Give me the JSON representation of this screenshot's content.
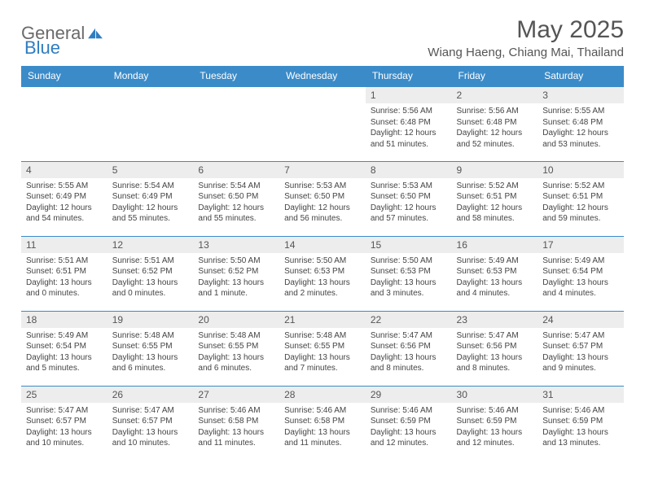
{
  "brand": {
    "general": "General",
    "blue": "Blue"
  },
  "title": "May 2025",
  "location": "Wiang Haeng, Chiang Mai, Thailand",
  "colors": {
    "header_bg": "#3b8bc9",
    "header_text": "#ffffff",
    "daynum_bg": "#ededed",
    "body_text": "#444444",
    "title_text": "#555555",
    "rule": "#3b8bc9"
  },
  "weekdays": [
    "Sunday",
    "Monday",
    "Tuesday",
    "Wednesday",
    "Thursday",
    "Friday",
    "Saturday"
  ],
  "cell_fontsize": 10,
  "daynum_fontsize": 12,
  "weeks": [
    [
      null,
      null,
      null,
      null,
      {
        "n": "1",
        "sr": "Sunrise: 5:56 AM",
        "ss": "Sunset: 6:48 PM",
        "d1": "Daylight: 12 hours",
        "d2": "and 51 minutes."
      },
      {
        "n": "2",
        "sr": "Sunrise: 5:56 AM",
        "ss": "Sunset: 6:48 PM",
        "d1": "Daylight: 12 hours",
        "d2": "and 52 minutes."
      },
      {
        "n": "3",
        "sr": "Sunrise: 5:55 AM",
        "ss": "Sunset: 6:48 PM",
        "d1": "Daylight: 12 hours",
        "d2": "and 53 minutes."
      }
    ],
    [
      {
        "n": "4",
        "sr": "Sunrise: 5:55 AM",
        "ss": "Sunset: 6:49 PM",
        "d1": "Daylight: 12 hours",
        "d2": "and 54 minutes."
      },
      {
        "n": "5",
        "sr": "Sunrise: 5:54 AM",
        "ss": "Sunset: 6:49 PM",
        "d1": "Daylight: 12 hours",
        "d2": "and 55 minutes."
      },
      {
        "n": "6",
        "sr": "Sunrise: 5:54 AM",
        "ss": "Sunset: 6:50 PM",
        "d1": "Daylight: 12 hours",
        "d2": "and 55 minutes."
      },
      {
        "n": "7",
        "sr": "Sunrise: 5:53 AM",
        "ss": "Sunset: 6:50 PM",
        "d1": "Daylight: 12 hours",
        "d2": "and 56 minutes."
      },
      {
        "n": "8",
        "sr": "Sunrise: 5:53 AM",
        "ss": "Sunset: 6:50 PM",
        "d1": "Daylight: 12 hours",
        "d2": "and 57 minutes."
      },
      {
        "n": "9",
        "sr": "Sunrise: 5:52 AM",
        "ss": "Sunset: 6:51 PM",
        "d1": "Daylight: 12 hours",
        "d2": "and 58 minutes."
      },
      {
        "n": "10",
        "sr": "Sunrise: 5:52 AM",
        "ss": "Sunset: 6:51 PM",
        "d1": "Daylight: 12 hours",
        "d2": "and 59 minutes."
      }
    ],
    [
      {
        "n": "11",
        "sr": "Sunrise: 5:51 AM",
        "ss": "Sunset: 6:51 PM",
        "d1": "Daylight: 13 hours",
        "d2": "and 0 minutes."
      },
      {
        "n": "12",
        "sr": "Sunrise: 5:51 AM",
        "ss": "Sunset: 6:52 PM",
        "d1": "Daylight: 13 hours",
        "d2": "and 0 minutes."
      },
      {
        "n": "13",
        "sr": "Sunrise: 5:50 AM",
        "ss": "Sunset: 6:52 PM",
        "d1": "Daylight: 13 hours",
        "d2": "and 1 minute."
      },
      {
        "n": "14",
        "sr": "Sunrise: 5:50 AM",
        "ss": "Sunset: 6:53 PM",
        "d1": "Daylight: 13 hours",
        "d2": "and 2 minutes."
      },
      {
        "n": "15",
        "sr": "Sunrise: 5:50 AM",
        "ss": "Sunset: 6:53 PM",
        "d1": "Daylight: 13 hours",
        "d2": "and 3 minutes."
      },
      {
        "n": "16",
        "sr": "Sunrise: 5:49 AM",
        "ss": "Sunset: 6:53 PM",
        "d1": "Daylight: 13 hours",
        "d2": "and 4 minutes."
      },
      {
        "n": "17",
        "sr": "Sunrise: 5:49 AM",
        "ss": "Sunset: 6:54 PM",
        "d1": "Daylight: 13 hours",
        "d2": "and 4 minutes."
      }
    ],
    [
      {
        "n": "18",
        "sr": "Sunrise: 5:49 AM",
        "ss": "Sunset: 6:54 PM",
        "d1": "Daylight: 13 hours",
        "d2": "and 5 minutes."
      },
      {
        "n": "19",
        "sr": "Sunrise: 5:48 AM",
        "ss": "Sunset: 6:55 PM",
        "d1": "Daylight: 13 hours",
        "d2": "and 6 minutes."
      },
      {
        "n": "20",
        "sr": "Sunrise: 5:48 AM",
        "ss": "Sunset: 6:55 PM",
        "d1": "Daylight: 13 hours",
        "d2": "and 6 minutes."
      },
      {
        "n": "21",
        "sr": "Sunrise: 5:48 AM",
        "ss": "Sunset: 6:55 PM",
        "d1": "Daylight: 13 hours",
        "d2": "and 7 minutes."
      },
      {
        "n": "22",
        "sr": "Sunrise: 5:47 AM",
        "ss": "Sunset: 6:56 PM",
        "d1": "Daylight: 13 hours",
        "d2": "and 8 minutes."
      },
      {
        "n": "23",
        "sr": "Sunrise: 5:47 AM",
        "ss": "Sunset: 6:56 PM",
        "d1": "Daylight: 13 hours",
        "d2": "and 8 minutes."
      },
      {
        "n": "24",
        "sr": "Sunrise: 5:47 AM",
        "ss": "Sunset: 6:57 PM",
        "d1": "Daylight: 13 hours",
        "d2": "and 9 minutes."
      }
    ],
    [
      {
        "n": "25",
        "sr": "Sunrise: 5:47 AM",
        "ss": "Sunset: 6:57 PM",
        "d1": "Daylight: 13 hours",
        "d2": "and 10 minutes."
      },
      {
        "n": "26",
        "sr": "Sunrise: 5:47 AM",
        "ss": "Sunset: 6:57 PM",
        "d1": "Daylight: 13 hours",
        "d2": "and 10 minutes."
      },
      {
        "n": "27",
        "sr": "Sunrise: 5:46 AM",
        "ss": "Sunset: 6:58 PM",
        "d1": "Daylight: 13 hours",
        "d2": "and 11 minutes."
      },
      {
        "n": "28",
        "sr": "Sunrise: 5:46 AM",
        "ss": "Sunset: 6:58 PM",
        "d1": "Daylight: 13 hours",
        "d2": "and 11 minutes."
      },
      {
        "n": "29",
        "sr": "Sunrise: 5:46 AM",
        "ss": "Sunset: 6:59 PM",
        "d1": "Daylight: 13 hours",
        "d2": "and 12 minutes."
      },
      {
        "n": "30",
        "sr": "Sunrise: 5:46 AM",
        "ss": "Sunset: 6:59 PM",
        "d1": "Daylight: 13 hours",
        "d2": "and 12 minutes."
      },
      {
        "n": "31",
        "sr": "Sunrise: 5:46 AM",
        "ss": "Sunset: 6:59 PM",
        "d1": "Daylight: 13 hours",
        "d2": "and 13 minutes."
      }
    ]
  ]
}
